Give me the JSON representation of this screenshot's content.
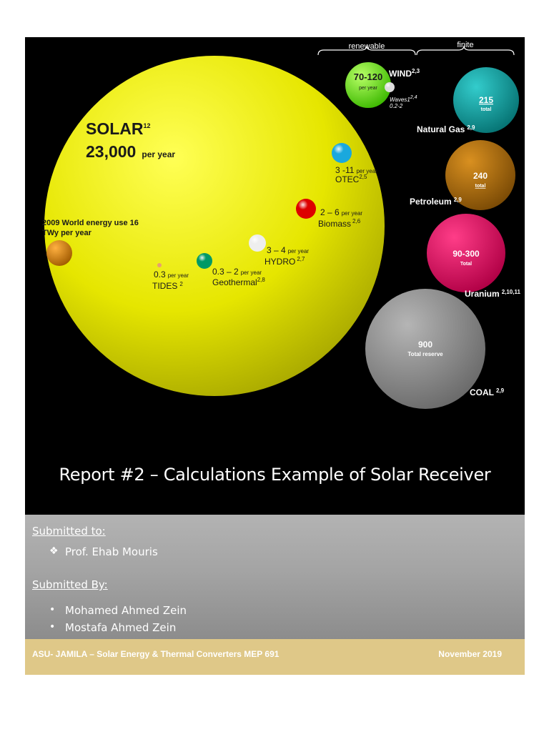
{
  "infographic": {
    "group_labels": {
      "renewable": "renewable",
      "finite": "finite"
    },
    "solar": {
      "name": "SOLAR",
      "sup": "12",
      "value": "23,000",
      "unit": "per year"
    },
    "world_use": {
      "line1": "2009 World energy use 16",
      "line2": "TWy  per year"
    },
    "wind": {
      "name": "WIND",
      "sup": "2,3",
      "value": "70-120",
      "unit": "per year"
    },
    "waves": {
      "name": "Waves",
      "sup": "2,4",
      "value": "0.2-2",
      "extra": "1"
    },
    "otec": {
      "value": "3 -11",
      "unit": "per year",
      "name": "OTEC",
      "sup": "2,5"
    },
    "biomass": {
      "value": "2 – 6",
      "unit": "per year",
      "name": "Biomass",
      "sup": "2,6"
    },
    "hydro": {
      "value": "3 – 4",
      "unit": "per year",
      "name": "HYDRO",
      "sup": "2,7"
    },
    "geothermal": {
      "value": "0.3 – 2",
      "unit": "per year",
      "name": "Geothermal",
      "sup": "2,8"
    },
    "tides": {
      "value": "0.3",
      "unit": "per year",
      "name": "TIDES",
      "sup": "2"
    },
    "natural_gas": {
      "value": "215",
      "unit": "total",
      "name": "Natural Gas",
      "sup": "2,9"
    },
    "petroleum": {
      "value": "240",
      "unit": "total",
      "name": "Petroleum",
      "sup": "2,9"
    },
    "uranium": {
      "value": "90-300",
      "unit": "Total",
      "name": "Uranium",
      "sup": "2,10,11"
    },
    "coal": {
      "value": "900",
      "unit": "Total reserve",
      "name": "COAL",
      "sup": "2,9"
    },
    "colors": {
      "solar": "#f0f000",
      "wind": "#66ee22",
      "otec": "#1aa8dd",
      "biomass": "#dd0000",
      "hydro": "#eeeeee",
      "geothermal": "#009966",
      "tides": "#e8a070",
      "world": "#e08a10",
      "natural_gas": "#0fa3a3",
      "petroleum": "#b9720a",
      "uranium": "#e8005a",
      "coal": "#8c8c8c"
    }
  },
  "title": "Report #2 – Calculations Example of Solar Receiver",
  "submitted_to": {
    "heading": "Submitted to:",
    "items": [
      "Prof. Ehab Mouris"
    ],
    "bullet_icon": "diamond-bullet-icon"
  },
  "submitted_by": {
    "heading": "Submitted By:",
    "items": [
      "Mohamed Ahmed Zein",
      "Mostafa Ahmed Zein"
    ],
    "bullet_icon": "dot-bullet-icon"
  },
  "footer": {
    "left": "ASU- JAMILA – Solar Energy & Thermal Converters MEP 691",
    "right": "November 2019"
  }
}
